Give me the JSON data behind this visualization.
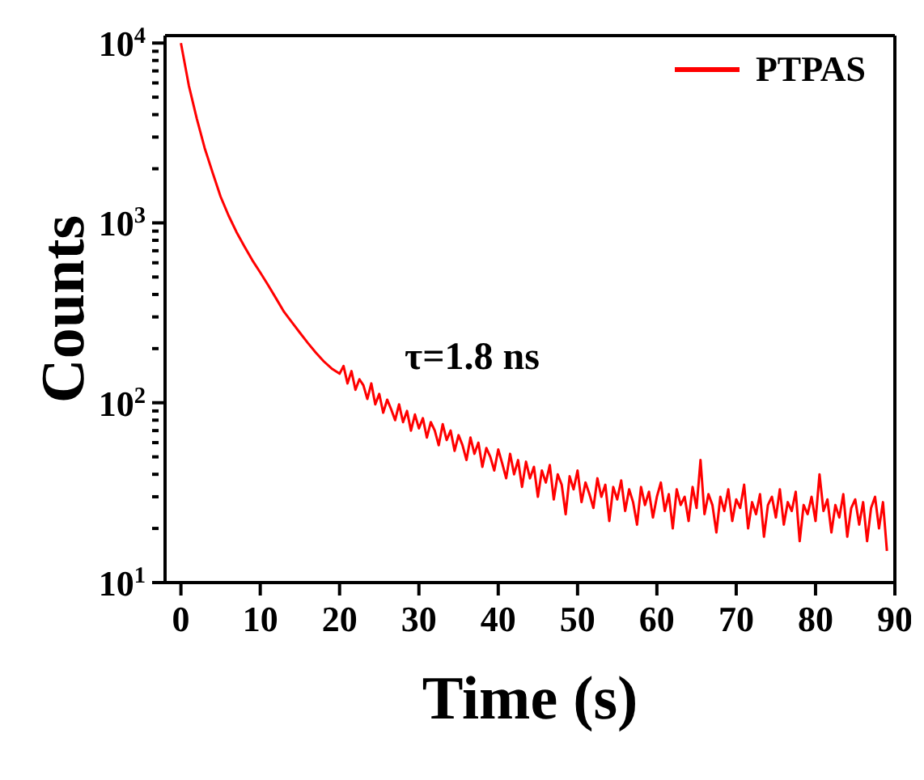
{
  "chart_data": {
    "type": "line",
    "xlabel": "Time (s)",
    "ylabel": "Counts",
    "annotations": [
      "τ=1.8 ns"
    ],
    "log": "y",
    "grid": false,
    "legend": "top right",
    "marker": "none",
    "line_style": "solid",
    "xlim": [
      -2,
      90
    ],
    "xticks": [
      0,
      10,
      20,
      30,
      40,
      50,
      60,
      70,
      80,
      90
    ],
    "ylim": [
      10,
      11000
    ],
    "yticks": [
      {
        "value": 10,
        "label": "10$^{1}$"
      },
      {
        "value": 20,
        "label": null
      },
      {
        "value": 30,
        "label": null
      },
      {
        "value": 40,
        "label": null
      },
      {
        "value": 50,
        "label": null
      },
      {
        "value": 60,
        "label": null
      },
      {
        "value": 70,
        "label": null
      },
      {
        "value": 80,
        "label": null
      },
      {
        "value": 90,
        "label": null
      },
      {
        "value": 100,
        "label": "10$^{2}$"
      },
      {
        "value": 200,
        "label": null
      },
      {
        "value": 300,
        "label": null
      },
      {
        "value": 400,
        "label": null
      },
      {
        "value": 500,
        "label": null
      },
      {
        "value": 600,
        "label": null
      },
      {
        "value": 700,
        "label": null
      },
      {
        "value": 800,
        "label": null
      },
      {
        "value": 900,
        "label": null
      },
      {
        "value": 1000,
        "label": "10$^{3}$"
      },
      {
        "value": 2000,
        "label": null
      },
      {
        "value": 3000,
        "label": null
      },
      {
        "value": 4000,
        "label": null
      },
      {
        "value": 5000,
        "label": null
      },
      {
        "value": 6000,
        "label": null
      },
      {
        "value": 7000,
        "label": null
      },
      {
        "value": 8000,
        "label": null
      },
      {
        "value": 9000,
        "label": null
      },
      {
        "value": 10000,
        "label": "10$^{4}$"
      }
    ],
    "series": [
      {
        "name": "PTPAS",
        "color": "#ff0000",
        "x": [
          0,
          1,
          2,
          3,
          4,
          5,
          6,
          7,
          8,
          9,
          10,
          11,
          12,
          13,
          14,
          15,
          16,
          17,
          18,
          19,
          20,
          20.5,
          21,
          21.5,
          22,
          22.5,
          23,
          23.5,
          24,
          24.5,
          25,
          25.5,
          26,
          26.5,
          27,
          27.5,
          28,
          28.5,
          29,
          29.5,
          30,
          30.5,
          31,
          31.5,
          32,
          32.5,
          33,
          33.5,
          34,
          34.5,
          35,
          35.5,
          36,
          36.5,
          37,
          37.5,
          38,
          38.5,
          39,
          39.5,
          40,
          40.5,
          41,
          41.5,
          42,
          42.5,
          43,
          43.5,
          44,
          44.5,
          45,
          45.5,
          46,
          46.5,
          47,
          47.5,
          48,
          48.5,
          49,
          49.5,
          50,
          50.5,
          51,
          51.5,
          52,
          52.5,
          53,
          53.5,
          54,
          54.5,
          55,
          55.5,
          56,
          56.5,
          57,
          57.5,
          58,
          58.5,
          59,
          59.5,
          60,
          60.5,
          61,
          61.5,
          62,
          62.5,
          63,
          63.5,
          64,
          64.5,
          65,
          65.5,
          66,
          66.5,
          67,
          67.5,
          68,
          68.5,
          69,
          69.5,
          70,
          70.5,
          71,
          71.5,
          72,
          72.5,
          73,
          73.5,
          74,
          74.5,
          75,
          75.5,
          76,
          76.5,
          77,
          77.5,
          78,
          78.5,
          79,
          79.5,
          80,
          80.5,
          81,
          81.5,
          82,
          82.5,
          83,
          83.5,
          84,
          84.5,
          85,
          85.5,
          86,
          86.5,
          87,
          87.5,
          88,
          88.5,
          89
        ],
        "values": [
          10000,
          5800,
          3800,
          2600,
          1900,
          1400,
          1100,
          890,
          740,
          620,
          530,
          450,
          380,
          320,
          280,
          245,
          215,
          190,
          170,
          155,
          145,
          160,
          128,
          150,
          118,
          135,
          125,
          105,
          128,
          98,
          112,
          88,
          104,
          92,
          80,
          98,
          78,
          90,
          70,
          86,
          72,
          82,
          64,
          78,
          70,
          58,
          76,
          62,
          70,
          54,
          66,
          58,
          48,
          64,
          52,
          60,
          44,
          56,
          50,
          42,
          55,
          46,
          38,
          52,
          40,
          48,
          34,
          47,
          38,
          44,
          30,
          42,
          36,
          45,
          29,
          40,
          35,
          24,
          39,
          33,
          42,
          28,
          36,
          31,
          26,
          38,
          30,
          35,
          22,
          34,
          29,
          37,
          25,
          33,
          28,
          21,
          34,
          27,
          32,
          23,
          30,
          36,
          25,
          31,
          20,
          33,
          27,
          30,
          22,
          34,
          26,
          48,
          24,
          31,
          27,
          19,
          30,
          25,
          33,
          22,
          29,
          26,
          35,
          20,
          28,
          24,
          31,
          18,
          27,
          30,
          23,
          33,
          21,
          28,
          25,
          32,
          17,
          27,
          24,
          30,
          22,
          40,
          25,
          29,
          19,
          27,
          23,
          31,
          18,
          26,
          29,
          21,
          28,
          17,
          26,
          30,
          20,
          28,
          15
        ]
      }
    ]
  }
}
